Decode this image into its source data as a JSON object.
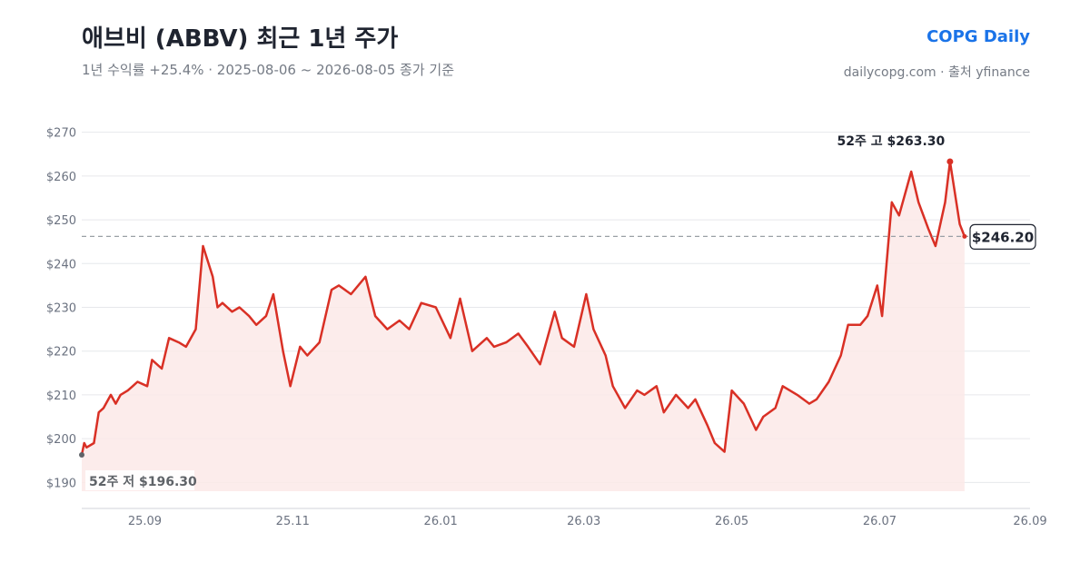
{
  "header": {
    "title": "애브비 (ABBV) 최근 1년 주가",
    "subtitle": "1년 수익률 +25.4%  ·  2025-08-06 ~ 2026-08-05 종가 기준",
    "brand": "COPG Daily",
    "source": "dailycopg.com · 출처 yfinance"
  },
  "colors": {
    "line": "#d93025",
    "fill": "#fbe9e8",
    "grid": "#e6e8eb",
    "axis_text": "#6b7280",
    "brand": "#1a73e8"
  },
  "chart_data": {
    "type": "line",
    "ylim": [
      188,
      272
    ],
    "yticks": [
      190,
      200,
      210,
      220,
      230,
      240,
      250,
      260,
      270
    ],
    "ytick_labels": [
      "$190",
      "$200",
      "$210",
      "$220",
      "$230",
      "$240",
      "$250",
      "$260",
      "$270"
    ],
    "xlim": [
      "2025-08-06",
      "2026-09-01"
    ],
    "xticks": [
      "2025-09-01",
      "2025-11-01",
      "2026-01-01",
      "2026-03-01",
      "2026-05-01",
      "2026-07-01",
      "2026-09-01"
    ],
    "xtick_labels": [
      "25.09",
      "25.11",
      "26.01",
      "26.03",
      "26.05",
      "26.07",
      "26.09"
    ],
    "reference_line": {
      "value": 246.2,
      "label": "$246.20"
    },
    "annotations": {
      "high": {
        "date": "2026-07-30",
        "value": 263.3,
        "label": "52주 고 $263.30"
      },
      "low": {
        "date": "2025-08-06",
        "value": 196.3,
        "label": "52주 저 $196.30"
      }
    },
    "series": [
      {
        "x": [
          "2025-08-06",
          "2025-08-07",
          "2025-08-08",
          "2025-08-11",
          "2025-08-13",
          "2025-08-15",
          "2025-08-18",
          "2025-08-20",
          "2025-08-22",
          "2025-08-25",
          "2025-08-27",
          "2025-08-29",
          "2025-09-02",
          "2025-09-04",
          "2025-09-08",
          "2025-09-11",
          "2025-09-15",
          "2025-09-18",
          "2025-09-22",
          "2025-09-25",
          "2025-09-29",
          "2025-10-01",
          "2025-10-03",
          "2025-10-07",
          "2025-10-10",
          "2025-10-14",
          "2025-10-17",
          "2025-10-21",
          "2025-10-24",
          "2025-10-28",
          "2025-10-31",
          "2025-11-04",
          "2025-11-07",
          "2025-11-12",
          "2025-11-17",
          "2025-11-20",
          "2025-11-25",
          "2025-12-01",
          "2025-12-05",
          "2025-12-10",
          "2025-12-15",
          "2025-12-19",
          "2025-12-24",
          "2025-12-30",
          "2026-01-05",
          "2026-01-09",
          "2026-01-14",
          "2026-01-20",
          "2026-01-23",
          "2026-01-28",
          "2026-02-02",
          "2026-02-06",
          "2026-02-11",
          "2026-02-17",
          "2026-02-20",
          "2026-02-25",
          "2026-03-02",
          "2026-03-05",
          "2026-03-10",
          "2026-03-13",
          "2026-03-18",
          "2026-03-23",
          "2026-03-26",
          "2026-03-31",
          "2026-04-03",
          "2026-04-08",
          "2026-04-13",
          "2026-04-16",
          "2026-04-21",
          "2026-04-24",
          "2026-04-28",
          "2026-05-01",
          "2026-05-06",
          "2026-05-11",
          "2026-05-14",
          "2026-05-19",
          "2026-05-22",
          "2026-05-28",
          "2026-06-02",
          "2026-06-05",
          "2026-06-10",
          "2026-06-15",
          "2026-06-18",
          "2026-06-23",
          "2026-06-26",
          "2026-06-30",
          "2026-07-02",
          "2026-07-06",
          "2026-07-09",
          "2026-07-14",
          "2026-07-17",
          "2026-07-21",
          "2026-07-24",
          "2026-07-28",
          "2026-07-30",
          "2026-08-03",
          "2026-08-05"
        ],
        "values": [
          196.3,
          199,
          198,
          199,
          206,
          207,
          210,
          208,
          210,
          211,
          212,
          213,
          212,
          218,
          216,
          223,
          222,
          221,
          225,
          244,
          237,
          230,
          231,
          229,
          230,
          228,
          226,
          228,
          233,
          220,
          212,
          221,
          219,
          222,
          234,
          235,
          233,
          237,
          228,
          225,
          227,
          225,
          231,
          230,
          223,
          232,
          220,
          223,
          221,
          222,
          224,
          221,
          217,
          229,
          223,
          221,
          233,
          225,
          219,
          212,
          207,
          211,
          210,
          212,
          206,
          210,
          207,
          209,
          203,
          199,
          197,
          211,
          208,
          202,
          205,
          207,
          212,
          210,
          208,
          209,
          213,
          219,
          226,
          226,
          228,
          235,
          228,
          254,
          251,
          261,
          254,
          248,
          244,
          254,
          263.3,
          249,
          246.2
        ]
      }
    ]
  }
}
